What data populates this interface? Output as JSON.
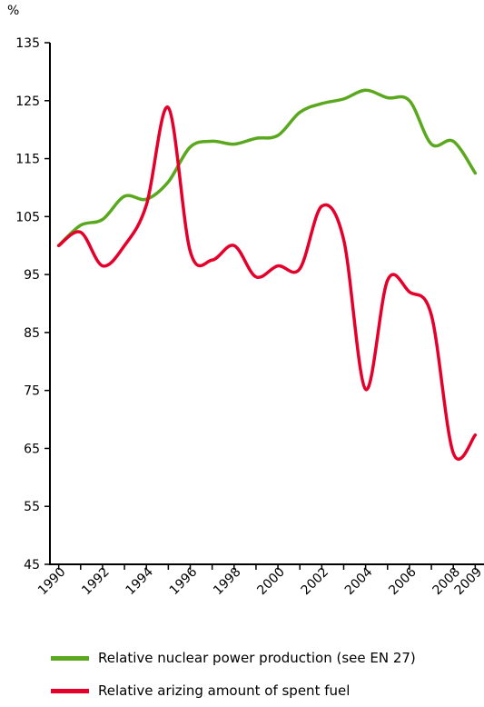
{
  "chart_data": {
    "type": "line",
    "ylabel": "%",
    "ylim": [
      45,
      135
    ],
    "yticks": [
      135,
      125,
      115,
      105,
      95,
      85,
      75,
      65,
      55,
      45
    ],
    "x": [
      1990,
      1991,
      1992,
      1993,
      1994,
      1995,
      1996,
      1997,
      1998,
      1999,
      2000,
      2001,
      2002,
      2003,
      2004,
      2005,
      2006,
      2007,
      2008,
      2009
    ],
    "xticks": [
      1990,
      1992,
      1994,
      1996,
      1998,
      2000,
      2002,
      2004,
      2006,
      2008,
      2009
    ],
    "grid": false,
    "legend_position": "bottom",
    "series": [
      {
        "name": "Relative nuclear power production (see EN 27)",
        "color": "#5aa81e",
        "values": [
          100,
          103.5,
          104.5,
          108.5,
          108,
          111,
          117,
          118,
          117.5,
          118.5,
          119,
          123,
          124.5,
          125.3,
          126.8,
          125.5,
          125,
          117.5,
          118,
          112.5
        ]
      },
      {
        "name": "Relative arizing amount of spent fuel",
        "color": "#e4002b",
        "values": [
          100,
          102.3,
          96.5,
          100,
          107,
          123.8,
          99,
          97.5,
          100,
          94.6,
          96.5,
          96,
          106.8,
          101,
          75.2,
          94,
          92,
          88,
          64.2,
          67.3
        ]
      }
    ]
  }
}
